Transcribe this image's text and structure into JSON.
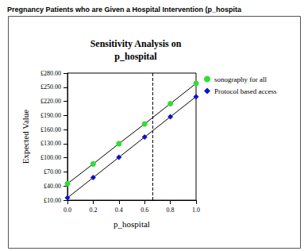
{
  "chart_data": {
    "type": "line",
    "header": "Pregnancy Patients who are Given a Hospital Intervention (p_hospita",
    "title": "Sensitivity Analysis on\np_hospital",
    "x_label": "p_hospital",
    "y_label": "Expected Value",
    "x": [
      0,
      0.2,
      0.4,
      0.6,
      0.8,
      1.0
    ],
    "series": [
      {
        "name": "sonography for all",
        "color": "#33dd33",
        "marker": "circle",
        "values": [
          45,
          87,
          130,
          172,
          215,
          258
        ]
      },
      {
        "name": "Protocol based access",
        "color": "#1010cc",
        "marker": "diamond",
        "values": [
          15,
          58,
          101,
          144,
          187,
          230
        ]
      }
    ],
    "xlim": [
      0,
      1.0
    ],
    "xticks": [
      {
        "value": 0,
        "label": "0.0"
      },
      0.2,
      0.4,
      0.6,
      0.8,
      {
        "value": 1.0,
        "label": "1.0"
      }
    ],
    "ylim": [
      10,
      280
    ],
    "yticks": [
      {
        "value": 10,
        "label": "£10.00"
      },
      {
        "value": 40,
        "label": "£40.00"
      },
      {
        "value": 70,
        "label": "£70.00"
      },
      {
        "value": 100,
        "label": "£100.00"
      },
      {
        "value": 130,
        "label": "£130.00"
      },
      {
        "value": 160,
        "label": "£160.00"
      },
      {
        "value": 190,
        "label": "£190.00"
      },
      {
        "value": 220,
        "label": "£220.00"
      },
      {
        "value": 250,
        "label": "£250.00"
      },
      {
        "value": 280,
        "label": "£280.00"
      }
    ],
    "reference_line": {
      "x": 0.66,
      "line_style": "dashed"
    },
    "grid": false,
    "legend": "top-right"
  }
}
